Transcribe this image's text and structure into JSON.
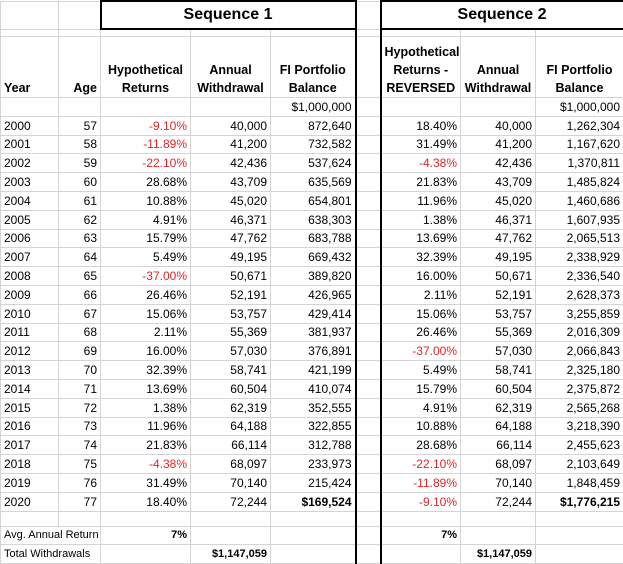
{
  "title_1": "Sequence 1",
  "title_2": "Sequence 2",
  "columns": [
    "Year",
    "Age",
    "Hypothetical Returns",
    "Annual Withdrawal",
    "FI Portfolio Balance",
    "Hypothetical Returns - REVERSED",
    "Annual Withdrawal",
    "FI Portfolio Balance"
  ],
  "start_balance": [
    "$1,000,000",
    "$1,000,000"
  ],
  "rows": [
    [
      2000,
      57,
      "-9.10%",
      "40,000",
      "872,640",
      "18.40%",
      "40,000",
      "1,262,304"
    ],
    [
      2001,
      58,
      "-11.89%",
      "41,200",
      "732,582",
      "31.49%",
      "41,200",
      "1,167,620"
    ],
    [
      2002,
      59,
      "-22.10%",
      "42,436",
      "537,624",
      "-4.38%",
      "42,436",
      "1,370,811"
    ],
    [
      2003,
      60,
      "28.68%",
      "43,709",
      "635,569",
      "21.83%",
      "43,709",
      "1,485,824"
    ],
    [
      2004,
      61,
      "10.88%",
      "45,020",
      "654,801",
      "11.96%",
      "45,020",
      "1,460,686"
    ],
    [
      2005,
      62,
      "4.91%",
      "46,371",
      "638,303",
      "1.38%",
      "46,371",
      "1,607,935"
    ],
    [
      2006,
      63,
      "15.79%",
      "47,762",
      "683,788",
      "13.69%",
      "47,762",
      "2,065,513"
    ],
    [
      2007,
      64,
      "5.49%",
      "49,195",
      "669,432",
      "32.39%",
      "49,195",
      "2,338,929"
    ],
    [
      2008,
      65,
      "-37.00%",
      "50,671",
      "389,820",
      "16.00%",
      "50,671",
      "2,336,540"
    ],
    [
      2009,
      66,
      "26.46%",
      "52,191",
      "426,965",
      "2.11%",
      "52,191",
      "2,628,373"
    ],
    [
      2010,
      67,
      "15.06%",
      "53,757",
      "429,414",
      "15.06%",
      "53,757",
      "3,255,859"
    ],
    [
      2011,
      68,
      "2.11%",
      "55,369",
      "381,937",
      "26.46%",
      "55,369",
      "2,016,309"
    ],
    [
      2012,
      69,
      "16.00%",
      "57,030",
      "376,891",
      "-37.00%",
      "57,030",
      "2,066,843"
    ],
    [
      2013,
      70,
      "32.39%",
      "58,741",
      "421,199",
      "5.49%",
      "58,741",
      "2,325,180"
    ],
    [
      2014,
      71,
      "13.69%",
      "60,504",
      "410,074",
      "15.79%",
      "60,504",
      "2,375,872"
    ],
    [
      2015,
      72,
      "1.38%",
      "62,319",
      "352,555",
      "4.91%",
      "62,319",
      "2,565,268"
    ],
    [
      2016,
      73,
      "11.96%",
      "64,188",
      "322,855",
      "10.88%",
      "64,188",
      "3,218,390"
    ],
    [
      2017,
      74,
      "21.83%",
      "66,114",
      "312,788",
      "28.68%",
      "66,114",
      "2,455,623"
    ],
    [
      2018,
      75,
      "-4.38%",
      "68,097",
      "233,973",
      "-22.10%",
      "68,097",
      "2,103,649"
    ],
    [
      2019,
      76,
      "31.49%",
      "70,140",
      "215,424",
      "-11.89%",
      "70,140",
      "1,848,459"
    ],
    [
      2020,
      77,
      "18.40%",
      "72,244",
      "$169,524",
      "-9.10%",
      "72,244",
      "$1,776,215"
    ]
  ],
  "avg_return": {
    "label": "Avg. Annual Return",
    "values": [
      "7%",
      "7%"
    ]
  },
  "total_withdrawals": {
    "label": "Total Withdrawals",
    "values": [
      "$1,147,059",
      "$1,147,059"
    ]
  }
}
